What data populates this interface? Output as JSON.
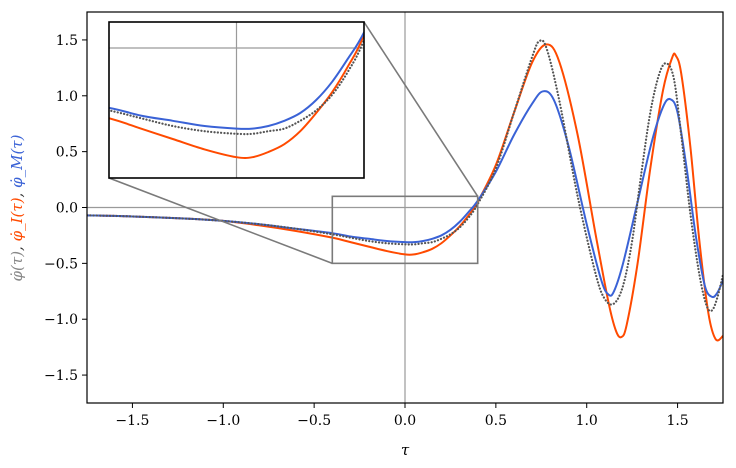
{
  "chart_data": {
    "type": "line",
    "xlabel": "τ",
    "ylabel_parts": [
      {
        "text": "φ̇(τ)",
        "color": "#888888"
      },
      {
        "text": ", ",
        "color": "#333333"
      },
      {
        "text": "φ̇_I(τ)",
        "color": "#ff4a00"
      },
      {
        "text": ", ",
        "color": "#333333"
      },
      {
        "text": "φ̇_M(τ)",
        "color": "#3a62d6"
      }
    ],
    "xlim": [
      -1.75,
      1.75
    ],
    "ylim": [
      -1.75,
      1.75
    ],
    "xticks": [
      -1.5,
      -1.0,
      -0.5,
      0.0,
      0.5,
      1.0,
      1.5
    ],
    "xtick_labels": [
      "−1.5",
      "−1.0",
      "−0.5",
      "0.0",
      "0.5",
      "1.0",
      "1.5"
    ],
    "yticks": [
      -1.5,
      -1.0,
      -0.5,
      0.0,
      0.5,
      1.0,
      1.5
    ],
    "ytick_labels": [
      "−1.5",
      "−1.0",
      "−0.5",
      "0.0",
      "0.5",
      "1.0",
      "1.5"
    ],
    "reference_lines": {
      "x": 0.0,
      "y": 0.0
    },
    "zoom_region": {
      "xlim": [
        -0.4,
        0.4
      ],
      "ylim": [
        -0.5,
        0.1
      ]
    },
    "series": [
      {
        "key": "phi_dot",
        "color": "#555555",
        "style": "dotted",
        "points": [
          [
            -1.75,
            -0.07
          ],
          [
            -1.5,
            -0.08
          ],
          [
            -1.2,
            -0.1
          ],
          [
            -1.0,
            -0.12
          ],
          [
            -0.8,
            -0.15
          ],
          [
            -0.6,
            -0.19
          ],
          [
            -0.4,
            -0.24
          ],
          [
            -0.3,
            -0.27
          ],
          [
            -0.2,
            -0.3
          ],
          [
            -0.1,
            -0.32
          ],
          [
            0.0,
            -0.33
          ],
          [
            0.05,
            -0.33
          ],
          [
            0.1,
            -0.32
          ],
          [
            0.15,
            -0.31
          ],
          [
            0.2,
            -0.28
          ],
          [
            0.25,
            -0.24
          ],
          [
            0.3,
            -0.18
          ],
          [
            0.35,
            -0.09
          ],
          [
            0.4,
            0.03
          ],
          [
            0.5,
            0.35
          ],
          [
            0.6,
            0.85
          ],
          [
            0.7,
            1.35
          ],
          [
            0.74,
            1.49
          ],
          [
            0.78,
            1.42
          ],
          [
            0.85,
            0.95
          ],
          [
            0.95,
            0.1
          ],
          [
            1.05,
            -0.6
          ],
          [
            1.1,
            -0.82
          ],
          [
            1.15,
            -0.86
          ],
          [
            1.2,
            -0.7
          ],
          [
            1.25,
            -0.3
          ],
          [
            1.3,
            0.3
          ],
          [
            1.35,
            0.85
          ],
          [
            1.4,
            1.2
          ],
          [
            1.44,
            1.29
          ],
          [
            1.48,
            1.15
          ],
          [
            1.52,
            0.65
          ],
          [
            1.57,
            -0.05
          ],
          [
            1.62,
            -0.6
          ],
          [
            1.66,
            -0.88
          ],
          [
            1.69,
            -0.92
          ],
          [
            1.72,
            -0.8
          ],
          [
            1.75,
            -0.6
          ]
        ]
      },
      {
        "key": "phi_dot_I",
        "color": "#ff4a00",
        "style": "solid",
        "points": [
          [
            -1.75,
            -0.07
          ],
          [
            -1.5,
            -0.08
          ],
          [
            -1.2,
            -0.1
          ],
          [
            -1.0,
            -0.12
          ],
          [
            -0.8,
            -0.16
          ],
          [
            -0.6,
            -0.21
          ],
          [
            -0.4,
            -0.27
          ],
          [
            -0.3,
            -0.31
          ],
          [
            -0.2,
            -0.35
          ],
          [
            -0.1,
            -0.39
          ],
          [
            0.0,
            -0.42
          ],
          [
            0.05,
            -0.42
          ],
          [
            0.1,
            -0.4
          ],
          [
            0.15,
            -0.37
          ],
          [
            0.2,
            -0.32
          ],
          [
            0.25,
            -0.25
          ],
          [
            0.3,
            -0.17
          ],
          [
            0.35,
            -0.07
          ],
          [
            0.4,
            0.05
          ],
          [
            0.5,
            0.38
          ],
          [
            0.6,
            0.85
          ],
          [
            0.7,
            1.3
          ],
          [
            0.78,
            1.46
          ],
          [
            0.85,
            1.3
          ],
          [
            0.95,
            0.65
          ],
          [
            1.05,
            -0.25
          ],
          [
            1.12,
            -0.85
          ],
          [
            1.16,
            -1.1
          ],
          [
            1.19,
            -1.16
          ],
          [
            1.22,
            -1.05
          ],
          [
            1.28,
            -0.5
          ],
          [
            1.35,
            0.35
          ],
          [
            1.42,
            1.05
          ],
          [
            1.47,
            1.34
          ],
          [
            1.49,
            1.36
          ],
          [
            1.52,
            1.2
          ],
          [
            1.57,
            0.55
          ],
          [
            1.62,
            -0.3
          ],
          [
            1.67,
            -0.95
          ],
          [
            1.71,
            -1.18
          ],
          [
            1.75,
            -1.15
          ]
        ]
      },
      {
        "key": "phi_dot_M",
        "color": "#3a62d6",
        "style": "solid",
        "points": [
          [
            -1.75,
            -0.07
          ],
          [
            -1.5,
            -0.08
          ],
          [
            -1.2,
            -0.1
          ],
          [
            -1.0,
            -0.12
          ],
          [
            -0.8,
            -0.15
          ],
          [
            -0.6,
            -0.19
          ],
          [
            -0.4,
            -0.23
          ],
          [
            -0.3,
            -0.26
          ],
          [
            -0.2,
            -0.28
          ],
          [
            -0.1,
            -0.3
          ],
          [
            0.0,
            -0.31
          ],
          [
            0.05,
            -0.31
          ],
          [
            0.1,
            -0.3
          ],
          [
            0.15,
            -0.28
          ],
          [
            0.2,
            -0.25
          ],
          [
            0.25,
            -0.2
          ],
          [
            0.3,
            -0.13
          ],
          [
            0.35,
            -0.04
          ],
          [
            0.4,
            0.06
          ],
          [
            0.5,
            0.32
          ],
          [
            0.6,
            0.65
          ],
          [
            0.7,
            0.93
          ],
          [
            0.76,
            1.04
          ],
          [
            0.82,
            0.96
          ],
          [
            0.9,
            0.55
          ],
          [
            1.0,
            -0.15
          ],
          [
            1.08,
            -0.65
          ],
          [
            1.12,
            -0.78
          ],
          [
            1.15,
            -0.75
          ],
          [
            1.2,
            -0.5
          ],
          [
            1.28,
            0.05
          ],
          [
            1.36,
            0.6
          ],
          [
            1.42,
            0.9
          ],
          [
            1.46,
            0.97
          ],
          [
            1.5,
            0.85
          ],
          [
            1.55,
            0.35
          ],
          [
            1.6,
            -0.25
          ],
          [
            1.65,
            -0.7
          ],
          [
            1.69,
            -0.8
          ],
          [
            1.72,
            -0.76
          ],
          [
            1.75,
            -0.65
          ]
        ]
      }
    ]
  }
}
